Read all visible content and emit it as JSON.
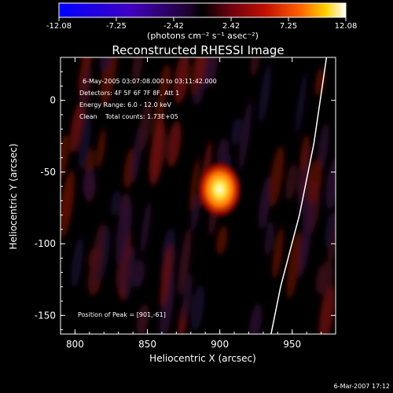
{
  "chart_data": {
    "type": "heatmap",
    "title": "Reconstructed RHESSI Image",
    "xlabel": "Heliocentric X (arcsec)",
    "ylabel": "Heliocentric Y (arcsec)",
    "xlim": [
      790,
      980
    ],
    "ylim": [
      -163,
      30
    ],
    "x_ticks": [
      800,
      850,
      900,
      950
    ],
    "y_ticks": [
      0,
      -50,
      -100,
      -150
    ],
    "x_tick_labels": [
      "800",
      "850",
      "900",
      "950"
    ],
    "y_tick_labels": [
      "0",
      "-50",
      "-100",
      "-150"
    ],
    "colorbar": {
      "range": [
        -12.08,
        12.08
      ],
      "ticks": [
        -12.08,
        -7.25,
        -2.42,
        2.42,
        7.25,
        12.08
      ],
      "tick_labels": [
        "-12.08",
        "-7.25",
        "-2.42",
        "2.42",
        "7.25",
        "12.08"
      ],
      "label": "(photons cm⁻² s⁻¹ asec⁻²)"
    },
    "annotations": [
      "6-May-2005 03:07:08.000 to 03:11:42.000",
      "Detectors: 4F 5F 6F 7F 8F, Att 1",
      "Energy Range: 6.0 - 12.0 keV",
      "Clean    Total counts: 1.73E+05"
    ],
    "peak": {
      "x": 901,
      "y": -61,
      "label": "Position of Peak = [901,-61]"
    },
    "footer": "6-Mar-2007 17:12",
    "source_peak_value": 12.08,
    "limb_present": true
  }
}
